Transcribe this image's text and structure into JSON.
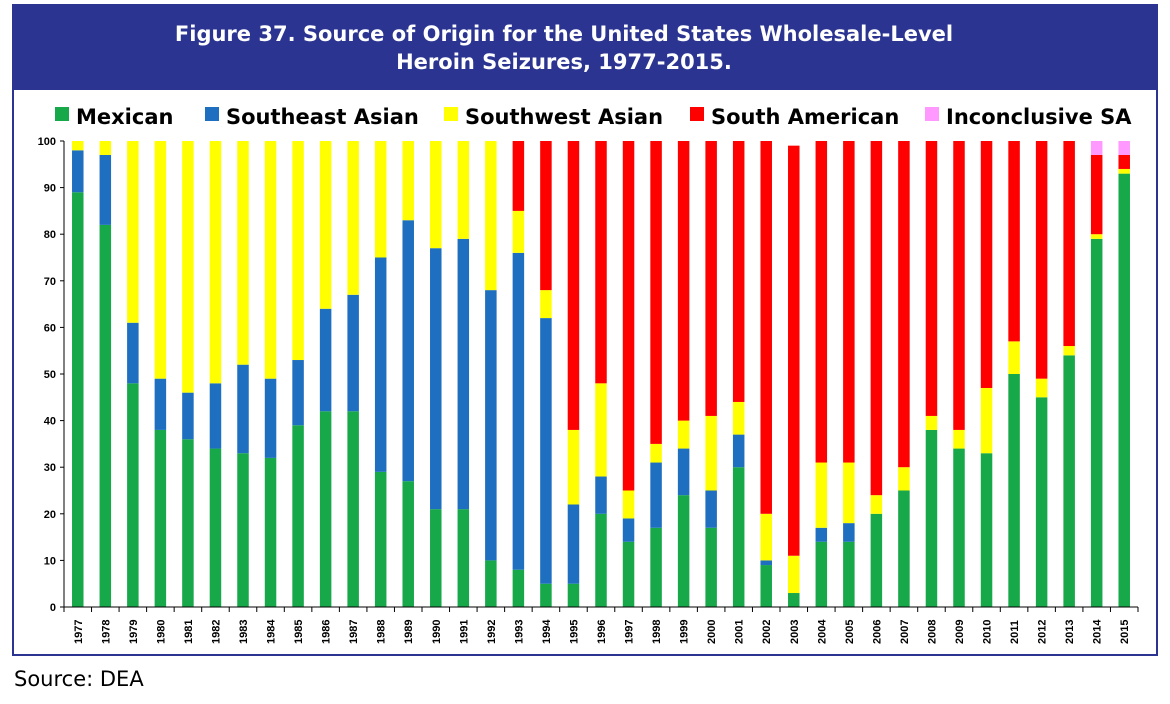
{
  "chart_data": {
    "type": "bar",
    "stacked": true,
    "title_line1": "Figure 37. Source of Origin for the United States Wholesale-Level",
    "title_line2": "Heroin Seizures, 1977-2015.",
    "legend_position": "top",
    "ylim": [
      0,
      100
    ],
    "yticks": [
      0,
      10,
      20,
      30,
      40,
      50,
      60,
      70,
      80,
      90,
      100
    ],
    "grid": false,
    "categories": [
      "1977",
      "1978",
      "1979",
      "1980",
      "1981",
      "1982",
      "1983",
      "1984",
      "1985",
      "1986",
      "1987",
      "1988",
      "1989",
      "1990",
      "1991",
      "1992",
      "1993",
      "1994",
      "1995",
      "1996",
      "1997",
      "1998",
      "1999",
      "2000",
      "2001",
      "2002",
      "2003",
      "2004",
      "2005",
      "2006",
      "2007",
      "2008",
      "2009",
      "2010",
      "2011",
      "2012",
      "2013",
      "2014",
      "2015"
    ],
    "series": [
      {
        "name": "Mexican",
        "color": "#17a84a",
        "values": [
          89,
          82,
          48,
          38,
          36,
          34,
          33,
          32,
          39,
          42,
          42,
          29,
          27,
          21,
          21,
          10,
          8,
          5,
          5,
          20,
          14,
          17,
          24,
          17,
          30,
          9,
          3,
          14,
          14,
          20,
          25,
          38,
          34,
          33,
          50,
          45,
          54,
          79,
          93
        ]
      },
      {
        "name": "Southeast Asian",
        "color": "#1e6fc0",
        "values": [
          9,
          15,
          13,
          11,
          10,
          14,
          19,
          17,
          14,
          22,
          25,
          46,
          56,
          56,
          58,
          58,
          68,
          57,
          17,
          8,
          5,
          14,
          10,
          8,
          7,
          1,
          0,
          3,
          4,
          0,
          0,
          0,
          0,
          0,
          0,
          0,
          0,
          0,
          0
        ]
      },
      {
        "name": "Southwest Asian",
        "color": "#ffff00",
        "values": [
          2,
          3,
          39,
          51,
          54,
          52,
          48,
          51,
          47,
          36,
          33,
          25,
          17,
          23,
          21,
          32,
          9,
          6,
          16,
          20,
          6,
          4,
          6,
          16,
          7,
          10,
          8,
          14,
          13,
          4,
          5,
          3,
          4,
          14,
          7,
          4,
          2,
          1,
          1
        ]
      },
      {
        "name": "South American",
        "color": "#ff0000",
        "values": [
          0,
          0,
          0,
          0,
          0,
          0,
          0,
          0,
          0,
          0,
          0,
          0,
          0,
          0,
          0,
          0,
          15,
          32,
          62,
          52,
          75,
          65,
          60,
          59,
          56,
          80,
          88,
          69,
          69,
          76,
          70,
          59,
          62,
          53,
          43,
          51,
          44,
          17,
          3
        ]
      },
      {
        "name": "Inconclusive SA",
        "color": "#ff99ff",
        "values": [
          0,
          0,
          0,
          0,
          0,
          0,
          0,
          0,
          0,
          0,
          0,
          0,
          0,
          0,
          0,
          0,
          0,
          0,
          0,
          0,
          0,
          0,
          0,
          0,
          0,
          0,
          0,
          0,
          0,
          0,
          0,
          0,
          0,
          0,
          0,
          0,
          0,
          3,
          3
        ]
      }
    ]
  },
  "source": "Source: DEA"
}
